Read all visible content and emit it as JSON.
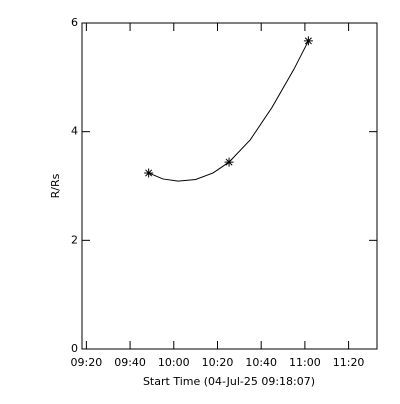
{
  "chart_data": {
    "type": "scatter",
    "x_label": "Start Time (04-Jul-25 09:18:07)",
    "y_label": "R/Rs",
    "x": [
      588.5,
      625.3,
      661.6
    ],
    "values": [
      3.24,
      3.44,
      5.67
    ],
    "fit": {
      "x": [
        588.5,
        595,
        602,
        610,
        618,
        625.3,
        635,
        645,
        655,
        661.6
      ],
      "values": [
        3.24,
        3.13,
        3.09,
        3.12,
        3.24,
        3.44,
        3.85,
        4.45,
        5.15,
        5.67
      ]
    },
    "color": "#000000",
    "xlim": [
      558,
      693
    ],
    "xticks": [
      {
        "value": 560,
        "label": "09:20"
      },
      {
        "value": 580,
        "label": "09:40"
      },
      {
        "value": 600,
        "label": "10:00"
      },
      {
        "value": 620,
        "label": "10:20"
      },
      {
        "value": 640,
        "label": "10:40"
      },
      {
        "value": 660,
        "label": "11:00"
      },
      {
        "value": 680,
        "label": "11:20"
      }
    ],
    "ylim": [
      0,
      6
    ],
    "yticks": [
      0,
      2,
      4,
      6
    ]
  }
}
